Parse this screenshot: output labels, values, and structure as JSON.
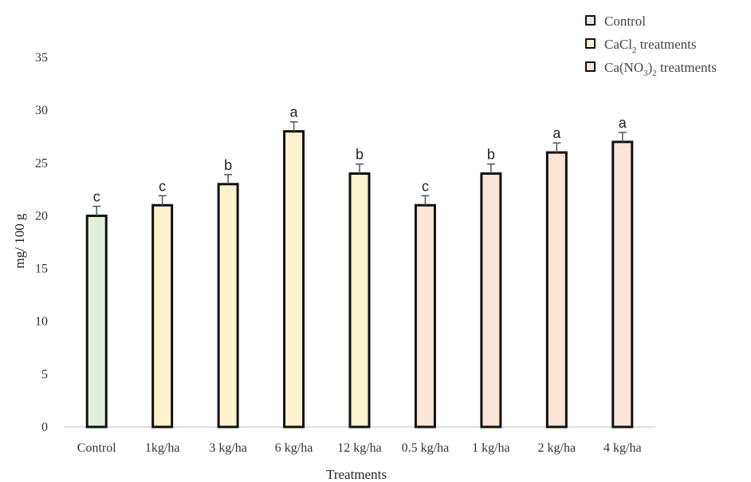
{
  "chart_data": {
    "type": "bar",
    "categories": [
      "Control",
      "1kg/ha",
      "3 kg/ha",
      "6 kg/ha",
      "12 kg/ha",
      "0.5 kg/ha",
      "1 kg/ha",
      "2 kg/ha",
      "4 kg/ha"
    ],
    "values": [
      20,
      21,
      23,
      28,
      24,
      21,
      24,
      26,
      27
    ],
    "errors": [
      0.9,
      0.9,
      0.9,
      0.9,
      0.9,
      0.9,
      0.9,
      0.9,
      0.9
    ],
    "significance": [
      "c",
      "c",
      "b",
      "a",
      "b",
      "c",
      "b",
      "a",
      "a"
    ],
    "groups": [
      0,
      1,
      1,
      1,
      1,
      2,
      2,
      2,
      2
    ],
    "legend": [
      {
        "label": "Control",
        "color": "#e2efda"
      },
      {
        "label": "CaCl2 treatments",
        "color": "#fff2cc"
      },
      {
        "label": "Ca(NO3)2 treatments",
        "color": "#fbe5d6"
      }
    ],
    "xlabel": "Treatments",
    "ylabel": "mg/ 100 g",
    "ylim": [
      0,
      35
    ],
    "yticks": [
      0,
      5,
      10,
      15,
      20,
      25,
      30,
      35
    ],
    "grid": false,
    "legend_position": "top-right"
  }
}
